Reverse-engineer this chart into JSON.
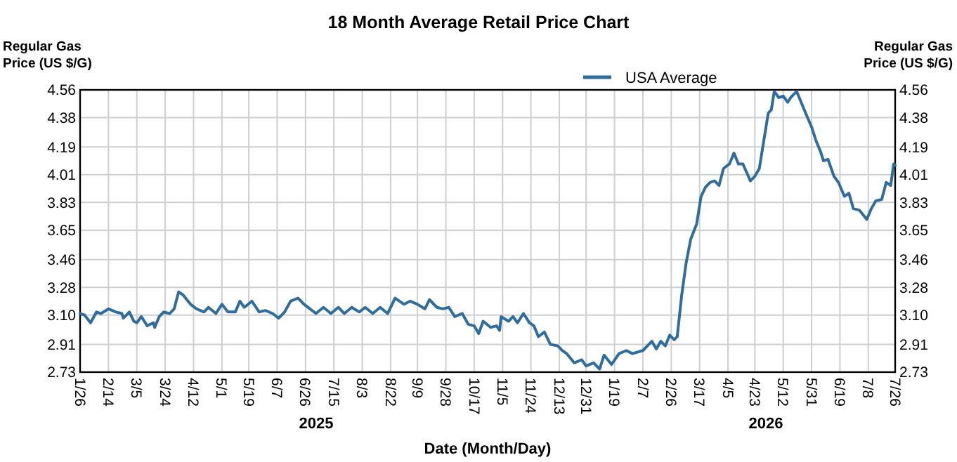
{
  "chart_data": {
    "type": "line",
    "title": "18 Month Average Retail Price Chart",
    "xlabel": "Date (Month/Day)",
    "ylabel": "Regular Gas Price (US $/G)",
    "y2label": "Regular Gas Price (US $/G)",
    "legend": "top",
    "grid": true,
    "xlim": [
      "2025-01-26",
      "2026-07-26"
    ],
    "xticks": [
      {
        "value": "2025-01-26",
        "label": "1/26"
      },
      {
        "value": "2025-02-14",
        "label": "2/14"
      },
      {
        "value": "2025-03-05",
        "label": "3/5"
      },
      {
        "value": "2025-03-24",
        "label": "3/24"
      },
      {
        "value": "2025-04-12",
        "label": "4/12"
      },
      {
        "value": "2025-05-01",
        "label": "5/1"
      },
      {
        "value": "2025-05-19",
        "label": "5/19"
      },
      {
        "value": "2025-06-07",
        "label": "6/7"
      },
      {
        "value": "2025-06-26",
        "label": "6/26"
      },
      {
        "value": "2025-07-15",
        "label": "7/15"
      },
      {
        "value": "2025-08-03",
        "label": "8/3"
      },
      {
        "value": "2025-08-22",
        "label": "8/22"
      },
      {
        "value": "2025-09-09",
        "label": "9/9"
      },
      {
        "value": "2025-09-28",
        "label": "9/28"
      },
      {
        "value": "2025-10-17",
        "label": "10/17"
      },
      {
        "value": "2025-11-05",
        "label": "11/5"
      },
      {
        "value": "2025-11-24",
        "label": "11/24"
      },
      {
        "value": "2025-12-13",
        "label": "12/13"
      },
      {
        "value": "2025-12-31",
        "label": "12/31"
      },
      {
        "value": "2026-01-19",
        "label": "1/19"
      },
      {
        "value": "2026-02-07",
        "label": "2/7"
      },
      {
        "value": "2026-02-26",
        "label": "2/26"
      },
      {
        "value": "2026-03-17",
        "label": "3/17"
      },
      {
        "value": "2026-04-05",
        "label": "4/5"
      },
      {
        "value": "2026-04-23",
        "label": "4/23"
      },
      {
        "value": "2026-05-12",
        "label": "5/12"
      },
      {
        "value": "2026-05-31",
        "label": "5/31"
      },
      {
        "value": "2026-06-19",
        "label": "6/19"
      },
      {
        "value": "2026-07-08",
        "label": "7/8"
      },
      {
        "value": "2026-07-26",
        "label": "7/26"
      }
    ],
    "ylim": [
      2.73,
      4.56
    ],
    "yticks": [
      2.73,
      2.91,
      {
        "value": 3.1,
        "label": "3.10"
      },
      3.28,
      3.46,
      3.65,
      3.83,
      4.01,
      4.19,
      4.38,
      4.56
    ],
    "y2lim": [
      2.73,
      4.56
    ],
    "y2ticks": [
      2.73,
      2.91,
      {
        "value": 3.1,
        "label": "3.10"
      },
      3.28,
      3.46,
      3.65,
      3.83,
      4.01,
      4.19,
      4.38,
      4.56
    ],
    "annotations": [
      "2025",
      "2026"
    ],
    "x": [
      "2025-01-26",
      "2025-01-29",
      "2025-02-02",
      "2025-02-06",
      "2025-02-09",
      "2025-02-14",
      "2025-02-19",
      "2025-02-23",
      "2025-02-24",
      "2025-02-28",
      "2025-03-03",
      "2025-03-05",
      "2025-03-08",
      "2025-03-12",
      "2025-03-16",
      "2025-03-17",
      "2025-03-20",
      "2025-03-23",
      "2025-03-27",
      "2025-03-30",
      "2025-04-02",
      "2025-04-05",
      "2025-04-10",
      "2025-04-14",
      "2025-04-19",
      "2025-04-22",
      "2025-04-27",
      "2025-05-01",
      "2025-05-05",
      "2025-05-10",
      "2025-05-13",
      "2025-05-16",
      "2025-05-21",
      "2025-05-26",
      "2025-05-30",
      "2025-06-04",
      "2025-06-08",
      "2025-06-12",
      "2025-06-16",
      "2025-06-21",
      "2025-06-25",
      "2025-06-29",
      "2025-07-03",
      "2025-07-08",
      "2025-07-13",
      "2025-07-18",
      "2025-07-22",
      "2025-07-27",
      "2025-08-01",
      "2025-08-05",
      "2025-08-10",
      "2025-08-15",
      "2025-08-20",
      "2025-08-25",
      "2025-08-31",
      "2025-09-04",
      "2025-09-09",
      "2025-09-14",
      "2025-09-17",
      "2025-09-22",
      "2025-09-26",
      "2025-09-30",
      "2025-10-04",
      "2025-10-09",
      "2025-10-13",
      "2025-10-17",
      "2025-10-20",
      "2025-10-23",
      "2025-10-28",
      "2025-11-01",
      "2025-11-03",
      "2025-11-04",
      "2025-11-09",
      "2025-11-12",
      "2025-11-15",
      "2025-11-19",
      "2025-11-23",
      "2025-11-26",
      "2025-11-29",
      "2025-12-03",
      "2025-12-07",
      "2025-12-12",
      "2025-12-15",
      "2025-12-18",
      "2025-12-23",
      "2025-12-28",
      "2025-12-31",
      "2026-01-05",
      "2026-01-09",
      "2026-01-12",
      "2026-01-17",
      "2026-01-22",
      "2026-01-27",
      "2026-01-31",
      "2026-02-07",
      "2026-02-10",
      "2026-02-13",
      "2026-02-16",
      "2026-02-19",
      "2026-02-22",
      "2026-02-25",
      "2026-02-28",
      "2026-03-02",
      "2026-03-05",
      "2026-03-08",
      "2026-03-11",
      "2026-03-15",
      "2026-03-18",
      "2026-03-21",
      "2026-03-24",
      "2026-03-27",
      "2026-03-30",
      "2026-04-02",
      "2026-04-06",
      "2026-04-09",
      "2026-04-12",
      "2026-04-15",
      "2026-04-20",
      "2026-04-23",
      "2026-04-26",
      "2026-04-28",
      "2026-05-02",
      "2026-05-04",
      "2026-05-06",
      "2026-05-09",
      "2026-05-12",
      "2026-05-15",
      "2026-05-17",
      "2026-05-21",
      "2026-05-24",
      "2026-05-27",
      "2026-05-31",
      "2026-06-03",
      "2026-06-06",
      "2026-06-08",
      "2026-06-11",
      "2026-06-15",
      "2026-06-18",
      "2026-06-22",
      "2026-06-25",
      "2026-06-28",
      "2026-07-02",
      "2026-07-07",
      "2026-07-10",
      "2026-07-13",
      "2026-07-17",
      "2026-07-20",
      "2026-07-23",
      "2026-07-25",
      "2026-07-26"
    ],
    "series": [
      {
        "name": "USA Average",
        "color": "#2f6d9e",
        "values": [
          3.11,
          3.1,
          3.05,
          3.12,
          3.11,
          3.14,
          3.12,
          3.11,
          3.08,
          3.12,
          3.06,
          3.05,
          3.09,
          3.03,
          3.05,
          3.02,
          3.09,
          3.12,
          3.11,
          3.14,
          3.25,
          3.23,
          3.17,
          3.14,
          3.12,
          3.15,
          3.11,
          3.17,
          3.12,
          3.12,
          3.19,
          3.15,
          3.19,
          3.12,
          3.13,
          3.11,
          3.08,
          3.12,
          3.19,
          3.21,
          3.17,
          3.14,
          3.11,
          3.15,
          3.11,
          3.15,
          3.11,
          3.15,
          3.12,
          3.15,
          3.11,
          3.15,
          3.11,
          3.21,
          3.17,
          3.19,
          3.17,
          3.14,
          3.2,
          3.15,
          3.14,
          3.15,
          3.09,
          3.11,
          3.04,
          3.03,
          2.98,
          3.06,
          3.02,
          3.03,
          3.0,
          3.09,
          3.06,
          3.09,
          3.05,
          3.11,
          3.05,
          3.03,
          2.96,
          2.99,
          2.91,
          2.9,
          2.87,
          2.85,
          2.79,
          2.81,
          2.77,
          2.79,
          2.75,
          2.84,
          2.78,
          2.85,
          2.87,
          2.85,
          2.87,
          2.9,
          2.93,
          2.88,
          2.93,
          2.9,
          2.97,
          2.94,
          2.96,
          3.23,
          3.44,
          3.59,
          3.69,
          3.87,
          3.93,
          3.96,
          3.97,
          3.94,
          4.05,
          4.08,
          4.15,
          4.08,
          4.08,
          3.97,
          4.0,
          4.05,
          4.17,
          4.41,
          4.43,
          4.55,
          4.51,
          4.52,
          4.48,
          4.51,
          4.55,
          4.48,
          4.41,
          4.32,
          4.23,
          4.16,
          4.1,
          4.11,
          4.0,
          3.96,
          3.87,
          3.89,
          3.79,
          3.78,
          3.72,
          3.79,
          3.84,
          3.85,
          3.96,
          3.94,
          4.08,
          4.07
        ]
      }
    ]
  }
}
